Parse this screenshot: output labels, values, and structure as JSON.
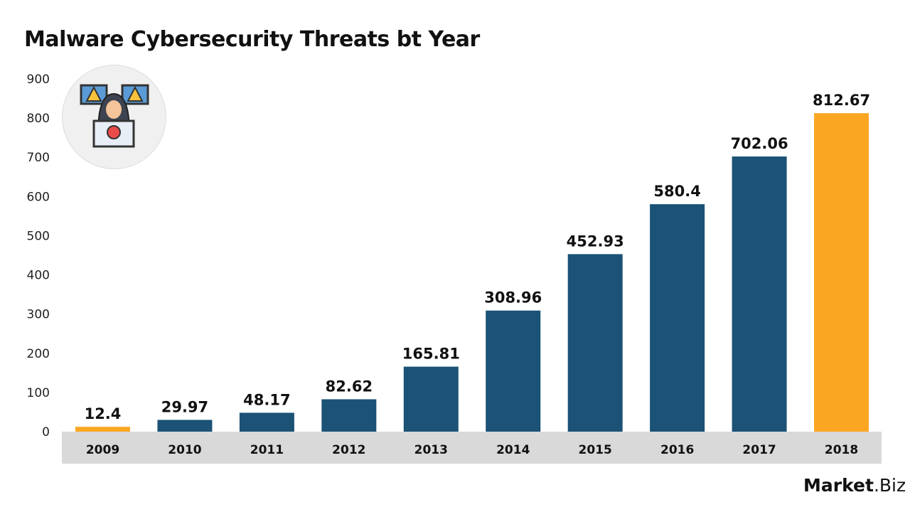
{
  "title": "Malware Cybersecurity Threats bt Year",
  "logo": {
    "bold": "Market",
    "light": ".Biz"
  },
  "chart_data": {
    "type": "bar",
    "title": "Malware Cybersecurity Threats bt Year",
    "categories": [
      "2009",
      "2010",
      "2011",
      "2012",
      "2013",
      "2014",
      "2015",
      "2016",
      "2017",
      "2018"
    ],
    "values": [
      12.4,
      29.97,
      48.17,
      82.62,
      165.81,
      308.96,
      452.93,
      580.4,
      702.06,
      812.67
    ],
    "value_labels": [
      "12.4",
      "29.97",
      "48.17",
      "82.62",
      "165.81",
      "308.96",
      "452.93",
      "580.4",
      "702.06",
      "812.67"
    ],
    "highlighted": [
      "2009",
      "2018"
    ],
    "ylim": [
      0,
      900
    ],
    "yticks": [
      0,
      100,
      200,
      300,
      400,
      500,
      600,
      700,
      800,
      900
    ],
    "xlabel": "",
    "ylabel": "",
    "grid": false,
    "colors": {
      "bar": "#1b5276",
      "highlight": "#fba623",
      "axis_band": "#d9d9d9"
    }
  }
}
